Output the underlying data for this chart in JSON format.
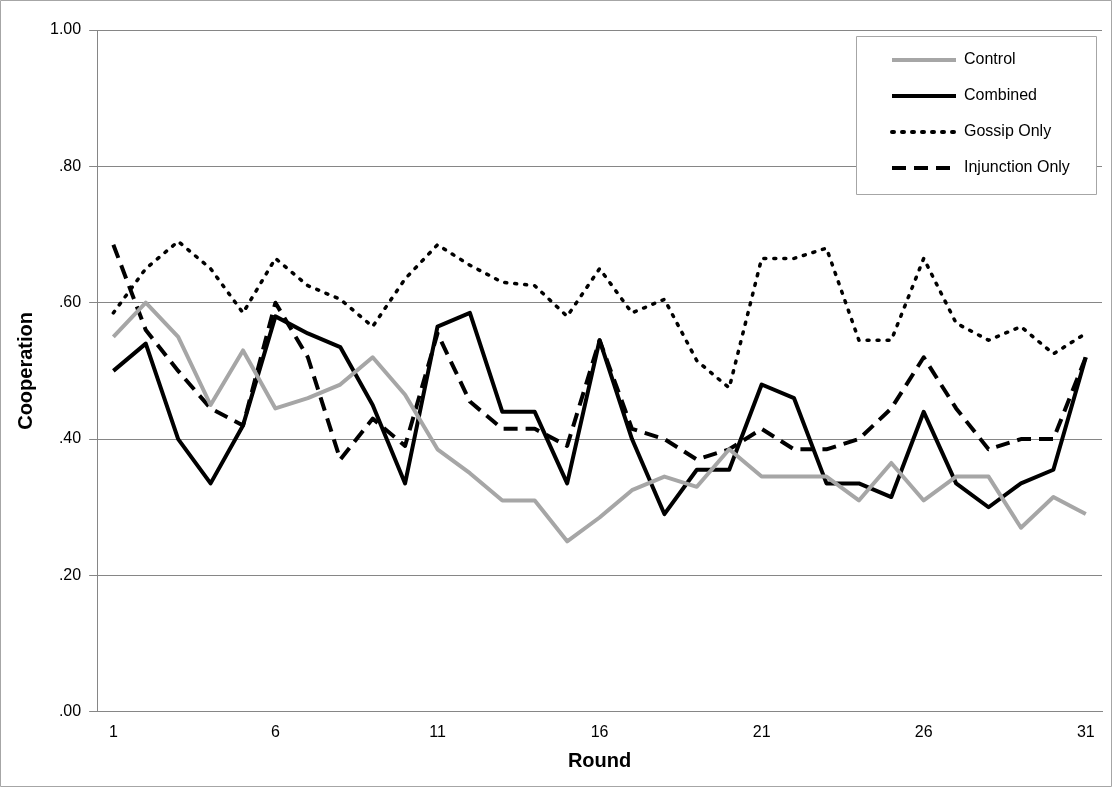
{
  "chart_data": {
    "type": "line",
    "xlabel": "Round",
    "ylabel": "Cooperation",
    "categories": [
      "1",
      null,
      null,
      null,
      null,
      "6",
      null,
      null,
      null,
      null,
      "11",
      null,
      null,
      null,
      null,
      "16",
      null,
      null,
      null,
      null,
      "21",
      null,
      null,
      null,
      null,
      "26",
      null,
      null,
      null,
      null,
      "31"
    ],
    "ylim": [
      0,
      1
    ],
    "yticks": [
      {
        "value": 0,
        "label": ".00"
      },
      {
        "value": 0.2,
        "label": ".20"
      },
      {
        "value": 0.4,
        "label": ".40"
      },
      {
        "value": 0.6,
        "label": ".60"
      },
      {
        "value": 0.8,
        "label": ".80"
      },
      {
        "value": 1,
        "label": "1.00"
      }
    ],
    "grid": "y",
    "legend": "top right",
    "marker": "none",
    "series": [
      {
        "name": "Control",
        "color": "#a6a6a6",
        "line_style": "solid",
        "values": [
          0.55,
          0.6,
          0.55,
          0.45,
          0.53,
          0.445,
          0.46,
          0.48,
          0.52,
          0.465,
          0.385,
          0.35,
          0.31,
          0.31,
          0.25,
          0.285,
          0.325,
          0.345,
          0.33,
          0.385,
          0.345,
          0.345,
          0.345,
          0.31,
          0.365,
          0.31,
          0.345,
          0.345,
          0.27,
          0.315,
          0.29
        ]
      },
      {
        "name": "Combined",
        "color": "#000000",
        "line_style": "solid",
        "values": [
          0.5,
          0.54,
          0.4,
          0.335,
          0.42,
          0.58,
          0.555,
          0.535,
          0.45,
          0.335,
          0.565,
          0.585,
          0.44,
          0.44,
          0.335,
          0.545,
          0.4,
          0.29,
          0.355,
          0.355,
          0.48,
          0.46,
          0.335,
          0.335,
          0.315,
          0.44,
          0.335,
          0.3,
          0.335,
          0.355,
          0.52
        ]
      },
      {
        "name": "Gossip Only",
        "color": "#000000",
        "line_style": "dotted",
        "values": [
          0.585,
          0.65,
          0.69,
          0.65,
          0.585,
          0.665,
          0.625,
          0.605,
          0.565,
          0.635,
          0.685,
          0.655,
          0.63,
          0.625,
          0.58,
          0.65,
          0.585,
          0.605,
          0.515,
          0.475,
          0.665,
          0.665,
          0.68,
          0.545,
          0.545,
          0.665,
          0.57,
          0.545,
          0.565,
          0.525,
          0.555
        ]
      },
      {
        "name": "Injunction Only",
        "color": "#000000",
        "line_style": "dashed",
        "values": [
          0.685,
          0.56,
          0.5,
          0.445,
          0.42,
          0.6,
          0.52,
          0.37,
          0.43,
          0.39,
          0.555,
          0.455,
          0.415,
          0.415,
          0.39,
          0.545,
          0.415,
          0.4,
          0.37,
          0.385,
          0.415,
          0.385,
          0.385,
          0.4,
          0.445,
          0.52,
          0.445,
          0.385,
          0.4,
          0.4,
          0.52
        ]
      }
    ]
  }
}
